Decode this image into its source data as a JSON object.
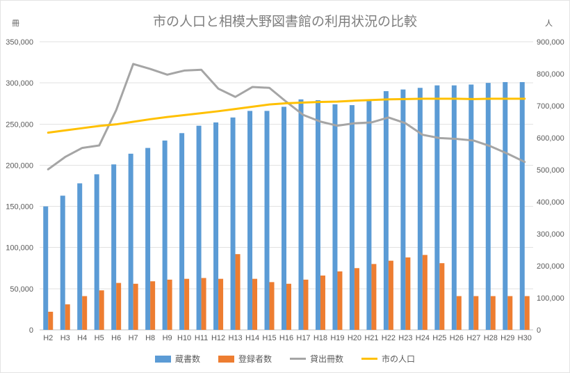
{
  "chart_data": {
    "type": "bar",
    "title": "市の人口と相模大野図書館の利用状況の比較",
    "legend_position": "bottom",
    "grid": true,
    "categories": [
      "H2",
      "H3",
      "H4",
      "H5",
      "H6",
      "H7",
      "H8",
      "H9",
      "H10",
      "H11",
      "H12",
      "H13",
      "H14",
      "H15",
      "H16",
      "H17",
      "H18",
      "H19",
      "H20",
      "H21",
      "H22",
      "H23",
      "H24",
      "H25",
      "H26",
      "H27",
      "H28",
      "H29",
      "H30"
    ],
    "left_axis": {
      "unit": "冊",
      "min": 0,
      "max": 350000,
      "step": 50000
    },
    "right_axis": {
      "unit": "人",
      "min": 0,
      "max": 900000,
      "step": 100000
    },
    "series": [
      {
        "name": "蔵書数",
        "type": "bar",
        "axis": "left",
        "color": "#5B9BD5",
        "values": [
          150000,
          163000,
          178000,
          189000,
          201000,
          214000,
          221000,
          230000,
          239000,
          248000,
          252000,
          258000,
          266000,
          266000,
          271000,
          280000,
          279000,
          274000,
          273000,
          280000,
          290000,
          292000,
          294000,
          297000,
          297000,
          298000,
          300000,
          301000,
          301000
        ]
      },
      {
        "name": "登録者数",
        "type": "bar",
        "axis": "left",
        "color": "#ED7D31",
        "values": [
          22000,
          31000,
          41000,
          48000,
          57000,
          56000,
          59000,
          61000,
          62000,
          63000,
          62000,
          92000,
          62000,
          58000,
          56000,
          61000,
          66000,
          71000,
          75000,
          80000,
          84000,
          88000,
          91000,
          81000,
          41000,
          41000,
          41000,
          41000,
          41000
        ]
      },
      {
        "name": "貸出冊数",
        "type": "line",
        "axis": "left",
        "color": "#A5A5A5",
        "values": [
          195000,
          210000,
          221000,
          224000,
          267000,
          323000,
          317000,
          310000,
          315000,
          316000,
          293000,
          283000,
          295000,
          294000,
          277000,
          261000,
          253000,
          248000,
          251000,
          252000,
          258000,
          251000,
          237000,
          233000,
          232000,
          230000,
          223000,
          214000,
          204000
        ]
      },
      {
        "name": "市の人口",
        "type": "line",
        "axis": "right",
        "color": "#FFC000",
        "values": [
          616000,
          623000,
          630000,
          637000,
          642000,
          650000,
          658000,
          665000,
          671000,
          677000,
          683000,
          690000,
          697000,
          704000,
          708000,
          710000,
          712000,
          713000,
          716000,
          718000,
          720000,
          721000,
          722000,
          722000,
          722000,
          721000,
          722000,
          722000,
          722000
        ]
      }
    ],
    "colors": {
      "gridline": "#E2E2E2",
      "axis_line": "#BFBFBF",
      "tick_text": "#595959",
      "title_text": "#7E7E7E"
    }
  }
}
